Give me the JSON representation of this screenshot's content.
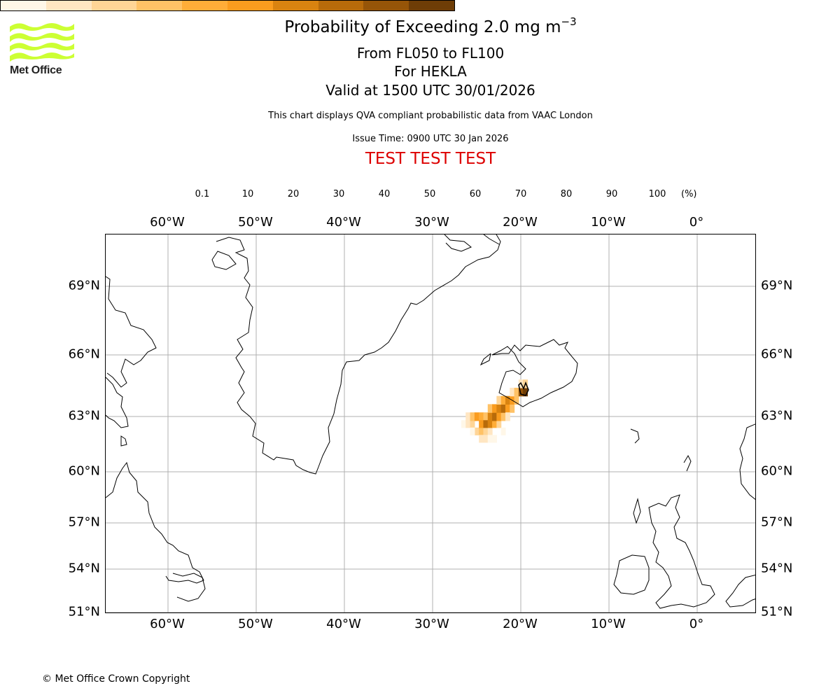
{
  "header": {
    "title_main": "Probability of Exceeding 2.0 mg m",
    "title_exp": "−3",
    "levels": "From FL050 to FL100",
    "volcano": "For HEKLA",
    "valid": "Valid at 1500 UTC 30/01/2026",
    "note": "This chart displays QVA compliant probabilistic data from VAAC London",
    "issue": "Issue Time: 0900 UTC 30 Jan 2026",
    "test_banner": "TEST TEST TEST"
  },
  "logo": {
    "text": "Met Office",
    "color": "#ccff33"
  },
  "colorbar": {
    "ticks": [
      "0.1",
      "10",
      "20",
      "30",
      "40",
      "50",
      "60",
      "70",
      "80",
      "90",
      "100"
    ],
    "unit": "(%)",
    "colors": [
      "#fff7e8",
      "#ffe6c2",
      "#ffd596",
      "#ffc266",
      "#ffad38",
      "#fa9c1e",
      "#d98310",
      "#b86b0a",
      "#965508",
      "#6e3d06"
    ]
  },
  "map": {
    "lon_labels": [
      "60°W",
      "50°W",
      "40°W",
      "30°W",
      "20°W",
      "10°W",
      "0°"
    ],
    "lat_labels": [
      "69°N",
      "66°N",
      "63°N",
      "60°N",
      "57°N",
      "54°N",
      "51°N"
    ],
    "grid_color": "#b0b0b0",
    "plume": {
      "source": "HEKLA",
      "cells": [
        [
          -26.5,
          62.6,
          0
        ],
        [
          -26.0,
          62.6,
          1
        ],
        [
          -25.5,
          62.6,
          2
        ],
        [
          -26.0,
          63.0,
          1
        ],
        [
          -25.5,
          63.0,
          3
        ],
        [
          -25.0,
          63.0,
          5
        ],
        [
          -24.5,
          63.0,
          4
        ],
        [
          -24.0,
          63.0,
          3
        ],
        [
          -25.0,
          62.2,
          2
        ],
        [
          -24.5,
          62.2,
          3
        ],
        [
          -24.0,
          62.2,
          2
        ],
        [
          -23.5,
          62.2,
          1
        ],
        [
          -24.5,
          62.6,
          5
        ],
        [
          -24.0,
          62.6,
          7
        ],
        [
          -23.5,
          62.6,
          6
        ],
        [
          -23.0,
          62.6,
          4
        ],
        [
          -22.5,
          62.6,
          2
        ],
        [
          -24.5,
          61.8,
          1
        ],
        [
          -24.0,
          61.8,
          1
        ],
        [
          -23.5,
          61.8,
          0
        ],
        [
          -23.0,
          61.8,
          0
        ],
        [
          -23.5,
          63.0,
          6
        ],
        [
          -23.0,
          63.0,
          7
        ],
        [
          -22.5,
          63.0,
          5
        ],
        [
          -22.0,
          63.0,
          3
        ],
        [
          -23.5,
          63.4,
          3
        ],
        [
          -23.0,
          63.4,
          5
        ],
        [
          -22.5,
          63.4,
          6
        ],
        [
          -22.0,
          63.4,
          7
        ],
        [
          -21.5,
          63.4,
          5
        ],
        [
          -21.0,
          63.4,
          3
        ],
        [
          -22.5,
          63.8,
          2
        ],
        [
          -22.0,
          63.8,
          4
        ],
        [
          -21.5,
          63.8,
          6
        ],
        [
          -21.0,
          63.8,
          5
        ],
        [
          -20.5,
          63.8,
          3
        ],
        [
          -21.0,
          64.2,
          1
        ],
        [
          -20.5,
          64.2,
          3
        ],
        [
          -20.0,
          64.2,
          8
        ],
        [
          -19.5,
          64.2,
          9
        ],
        [
          -20.0,
          64.6,
          1
        ],
        [
          -19.5,
          64.6,
          2
        ],
        [
          -25.5,
          62.2,
          0
        ],
        [
          -22.0,
          62.2,
          0
        ],
        [
          -21.5,
          63.0,
          1
        ]
      ]
    }
  },
  "footer": {
    "copyright": "© Met Office Crown Copyright"
  }
}
